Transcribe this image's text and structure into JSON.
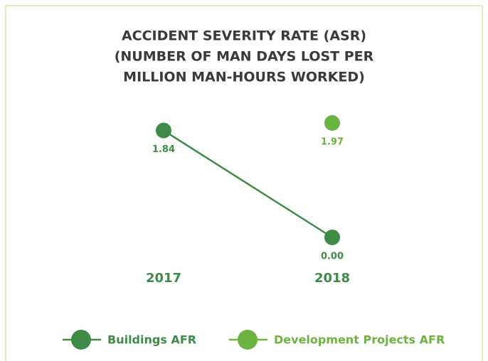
{
  "chart_data": {
    "type": "line",
    "title": [
      "ACCIDENT SEVERITY RATE (ASR)",
      "(NUMBER OF MAN DAYS LOST PER",
      "MILLION MAN-HOURS WORKED)"
    ],
    "categories": [
      "2017",
      "2018"
    ],
    "series": [
      {
        "name": "Buildings AFR",
        "color": "#3d8b47",
        "values": [
          1.84,
          0
        ],
        "value_labels": [
          "1.84",
          "0.00"
        ]
      },
      {
        "name": "Development Projects AFR",
        "color": "#6cb33f",
        "values": [
          null,
          1.97
        ],
        "value_labels": [
          null,
          "1.97"
        ]
      }
    ]
  }
}
